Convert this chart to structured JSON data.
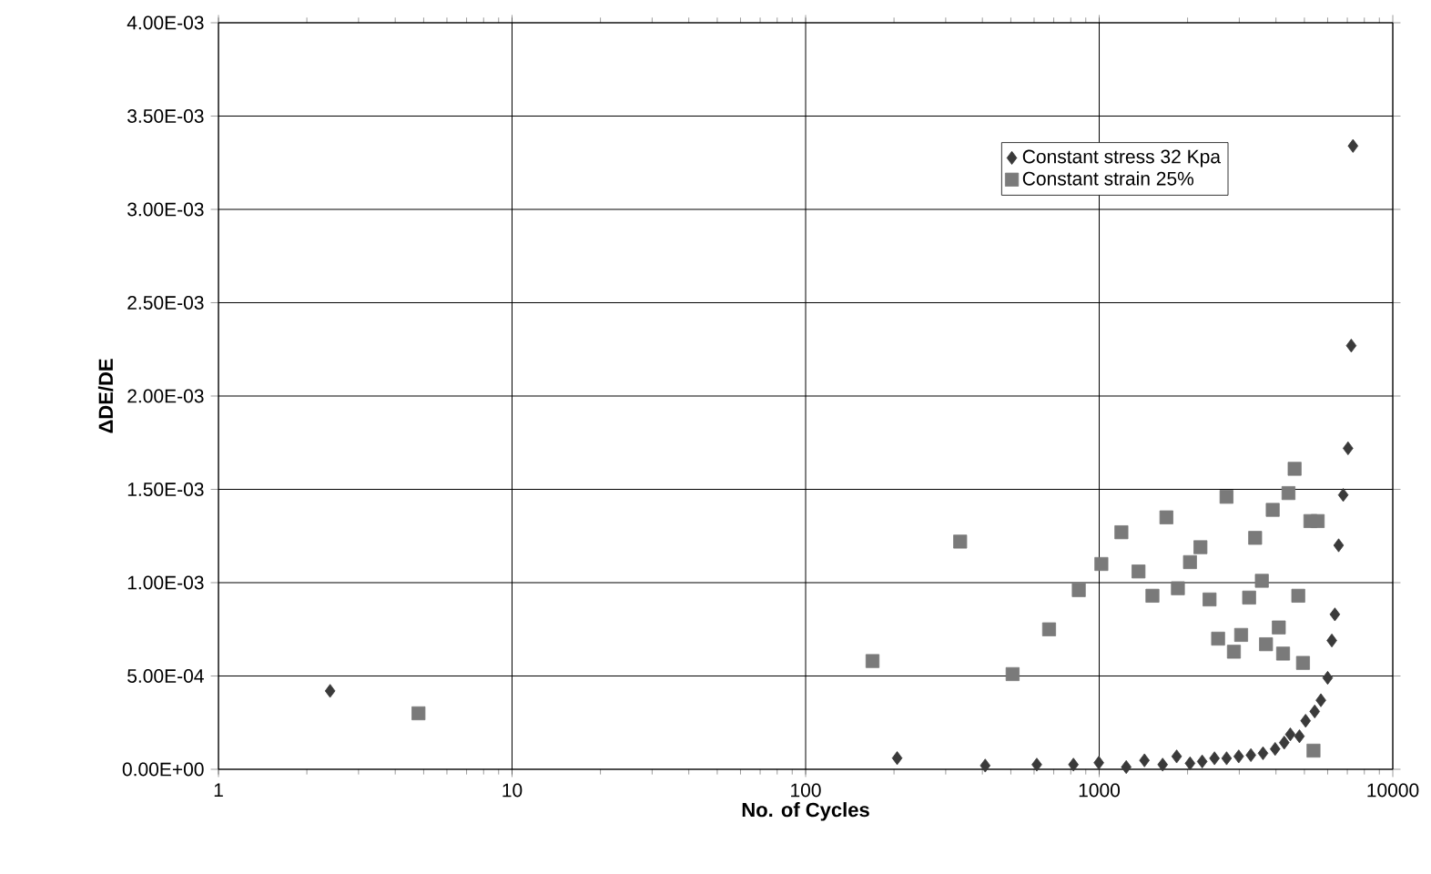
{
  "chart_data": {
    "type": "scatter",
    "xlabel": "No. of Cycles",
    "ylabel": "ΔDE/DE",
    "log": "x",
    "grid": true,
    "legend": "top right",
    "xlim": [
      1,
      10000
    ],
    "xticks": [
      1,
      10,
      100,
      1000,
      10000
    ],
    "ylim": [
      0,
      0.004
    ],
    "yticks": [
      {
        "value": 0,
        "label": "0.00E+00"
      },
      {
        "value": 0.0005,
        "label": "5.00E-04"
      },
      {
        "value": 0.001,
        "label": "1.00E-03"
      },
      {
        "value": 0.0015,
        "label": "1.50E-03"
      },
      {
        "value": 0.002,
        "label": "2.00E-03"
      },
      {
        "value": 0.0025,
        "label": "2.50E-03"
      },
      {
        "value": 0.003,
        "label": "3.00E-03"
      },
      {
        "value": 0.0035,
        "label": "3.50E-03"
      },
      {
        "value": 0.004,
        "label": "4.00E-03"
      }
    ],
    "series": [
      {
        "name": "Constant stress 32 Kpa",
        "color": "#3a3a3a",
        "marker": "diamond",
        "x": [
          2.4,
          205,
          409,
          613,
          817,
          997,
          1236,
          1426,
          1645,
          1836,
          2039,
          2243,
          2470,
          2716,
          2987,
          3286,
          3614,
          3975,
          4268,
          4476,
          4809,
          5047,
          5420,
          5690,
          6000,
          6200,
          6350,
          6540,
          6780,
          7040,
          7220,
          7320
        ],
        "values": [
          0.00042,
          6e-05,
          2e-05,
          2.5e-05,
          2.5e-05,
          3.5e-05,
          1.2e-05,
          4.8e-05,
          2.5e-05,
          6.9e-05,
          3.2e-05,
          4.2e-05,
          5.9e-05,
          5.9e-05,
          6.9e-05,
          7.6e-05,
          8.6e-05,
          0.000109,
          0.000143,
          0.000187,
          0.000177,
          0.00026,
          0.00031,
          0.00037,
          0.00049,
          0.00069,
          0.00083,
          0.0012,
          0.00147,
          0.00172,
          0.00227,
          0.00334
        ]
      },
      {
        "name": "Constant strain 25%",
        "color": "#7a7a7a",
        "marker": "square",
        "x": [
          4.8,
          169,
          336,
          507,
          675,
          852,
          1017,
          1190,
          1361,
          1518,
          1694,
          1854,
          2038,
          2212,
          2376,
          2714,
          2541,
          2876,
          3044,
          3241,
          3398,
          3581,
          3700,
          3900,
          4090,
          4230,
          4413,
          4630,
          4765,
          4945,
          5240,
          5550,
          5370
        ],
        "values": [
          0.0003,
          0.00058,
          0.00122,
          0.00051,
          0.00075,
          0.00096,
          0.0011,
          0.00127,
          0.00106,
          0.00093,
          0.00135,
          0.00097,
          0.00111,
          0.00119,
          0.00091,
          0.00146,
          0.0007,
          0.00063,
          0.00072,
          0.00092,
          0.00124,
          0.00101,
          0.00067,
          0.00139,
          0.00076,
          0.00062,
          0.00148,
          0.00161,
          0.00093,
          0.00057,
          0.00133,
          0.00133,
          0.0001
        ]
      }
    ]
  }
}
